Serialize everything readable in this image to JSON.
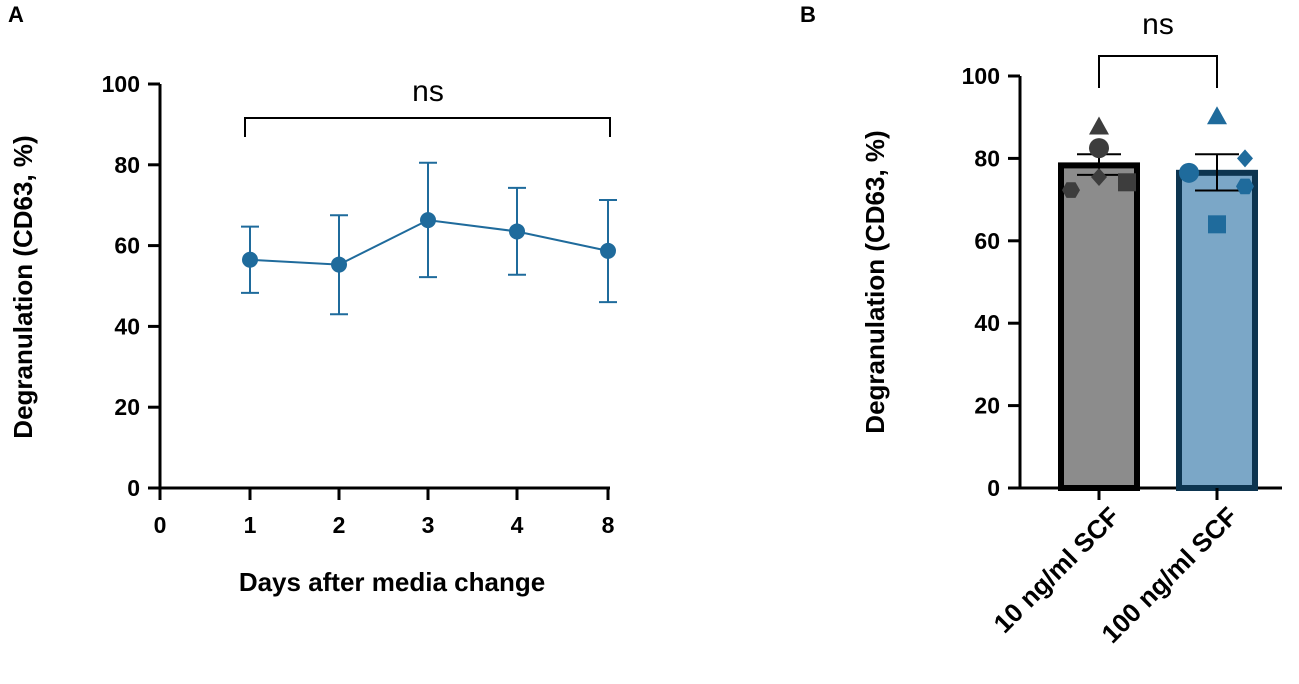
{
  "chart_data": [
    {
      "panel": "A",
      "type": "line",
      "ylabel": "Degranulation (CD63, %)",
      "xlabel": "Days after media change",
      "ylim": [
        0,
        100
      ],
      "yticks": [
        "0",
        "20",
        "40",
        "60",
        "80",
        "100"
      ],
      "xticks": [
        "0",
        "1",
        "2",
        "3",
        "4",
        "8"
      ],
      "significance": "ns",
      "color": "#1f6b9c",
      "series": [
        {
          "name": "Degranulation",
          "x": [
            "1",
            "2",
            "3",
            "4",
            "8"
          ],
          "values": [
            56.5,
            55.3,
            66.3,
            63.5,
            58.7
          ],
          "error_low": [
            48.3,
            43.0,
            52.2,
            52.8,
            46.0
          ],
          "error_high": [
            64.7,
            67.5,
            80.5,
            74.3,
            71.3
          ]
        }
      ]
    },
    {
      "panel": "B",
      "type": "bar",
      "ylabel": "Degranulation (CD63, %)",
      "ylim": [
        0,
        100
      ],
      "yticks": [
        "0",
        "20",
        "40",
        "60",
        "80",
        "100"
      ],
      "significance": "ns",
      "categories": [
        "10 ng/ml SCF",
        "100 ng/ml SCF"
      ],
      "values": [
        78.3,
        76.5
      ],
      "error_low": [
        76.0,
        72.2
      ],
      "error_high": [
        81.0,
        81.0
      ],
      "colors": {
        "bar_fill": [
          "#8c8c8c",
          "#7ba7c7"
        ],
        "bar_edge": [
          "#000000",
          "#0d3550"
        ],
        "point": [
          "#3d3d3d",
          "#1f6b9c"
        ]
      },
      "points": [
        [
          {
            "shape": "triangle",
            "value": 87.5
          },
          {
            "shape": "circle",
            "value": 82.5
          },
          {
            "shape": "diamond",
            "value": 75.5
          },
          {
            "shape": "hexagon",
            "value": 72.3
          },
          {
            "shape": "square",
            "value": 74.2
          }
        ],
        [
          {
            "shape": "triangle",
            "value": 90.0
          },
          {
            "shape": "circle",
            "value": 76.5
          },
          {
            "shape": "diamond",
            "value": 80.0
          },
          {
            "shape": "hexagon",
            "value": 73.2
          },
          {
            "shape": "square",
            "value": 64.0
          }
        ]
      ]
    }
  ]
}
